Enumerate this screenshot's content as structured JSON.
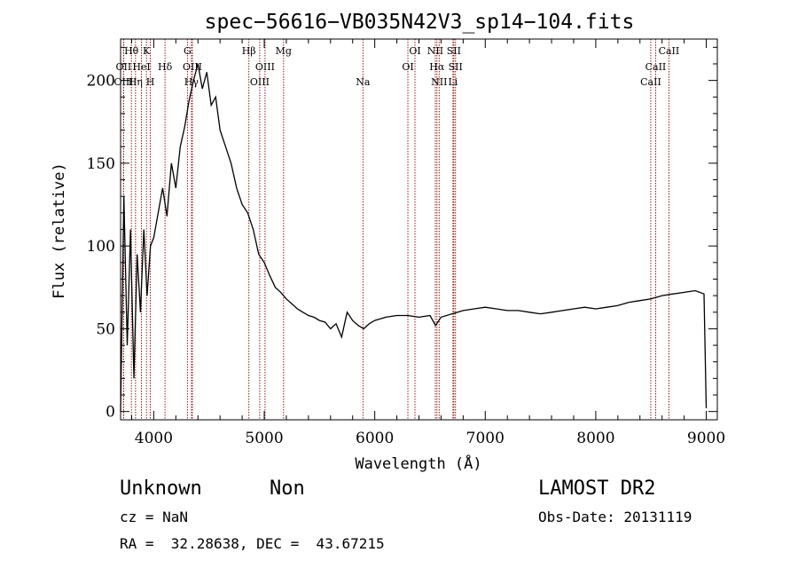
{
  "chart_data": {
    "type": "line",
    "title": "spec−56616−VB035N42V3_sp14−104.fits",
    "xlabel": "Wavelength (Å)",
    "ylabel": "Flux (relative)",
    "xlim": [
      3700,
      9100
    ],
    "ylim": [
      -5,
      225
    ],
    "x_ticks": [
      4000,
      5000,
      6000,
      7000,
      8000,
      9000
    ],
    "y_ticks": [
      0,
      50,
      100,
      150,
      200
    ],
    "grid": false,
    "series": [
      {
        "x": [
          3700,
          3730,
          3760,
          3790,
          3820,
          3850,
          3880,
          3910,
          3940,
          3970,
          4000,
          4040,
          4080,
          4120,
          4160,
          4200,
          4240,
          4280,
          4320,
          4360,
          4400,
          4440,
          4480,
          4520,
          4560,
          4600,
          4650,
          4700,
          4750,
          4800,
          4850,
          4900,
          4950,
          5000,
          5050,
          5100,
          5150,
          5200,
          5250,
          5300,
          5350,
          5400,
          5450,
          5500,
          5550,
          5600,
          5650,
          5700,
          5750,
          5800,
          5850,
          5900,
          5950,
          6000,
          6100,
          6200,
          6300,
          6400,
          6500,
          6550,
          6600,
          6700,
          6800,
          6900,
          7000,
          7100,
          7200,
          7300,
          7400,
          7500,
          7600,
          7700,
          7800,
          7900,
          8000,
          8100,
          8200,
          8300,
          8400,
          8500,
          8600,
          8700,
          8800,
          8900,
          8980,
          9000
        ],
        "y": [
          0,
          130,
          40,
          110,
          20,
          95,
          60,
          110,
          70,
          100,
          105,
          120,
          135,
          118,
          150,
          135,
          160,
          172,
          188,
          200,
          210,
          195,
          205,
          185,
          190,
          170,
          160,
          150,
          135,
          125,
          120,
          110,
          95,
          90,
          82,
          75,
          72,
          68,
          65,
          62,
          60,
          58,
          57,
          55,
          54,
          50,
          53,
          45,
          60,
          55,
          52,
          50,
          53,
          55,
          57,
          58,
          58,
          57,
          58,
          52,
          57,
          59,
          61,
          62,
          63,
          62,
          61,
          61,
          60,
          59,
          60,
          61,
          62,
          63,
          62,
          63,
          64,
          66,
          67,
          68,
          70,
          71,
          72,
          73,
          71,
          2
        ]
      }
    ],
    "line_markers": [
      {
        "name": "Hθ",
        "x": 3798,
        "row": 0
      },
      {
        "name": "OII",
        "x": 3727,
        "row": 1
      },
      {
        "name": "OIII",
        "x": 3728,
        "row": 2
      },
      {
        "name": "Hη",
        "x": 3835,
        "row": 2
      },
      {
        "name": "HeI",
        "x": 3889,
        "row": 1
      },
      {
        "name": "K",
        "x": 3934,
        "row": 0
      },
      {
        "name": "H",
        "x": 3969,
        "row": 2
      },
      {
        "name": "Hδ",
        "x": 4102,
        "row": 1
      },
      {
        "name": "G",
        "x": 4305,
        "row": 0
      },
      {
        "name": "OIII",
        "x": 4350,
        "row": 1
      },
      {
        "name": "Hγ",
        "x": 4341,
        "row": 2
      },
      {
        "name": "Hβ",
        "x": 4861,
        "row": 0
      },
      {
        "name": "OIII",
        "x": 4959,
        "row": 2
      },
      {
        "name": "OIII",
        "x": 5007,
        "row": 1
      },
      {
        "name": "Mg",
        "x": 5175,
        "row": 0
      },
      {
        "name": "Na",
        "x": 5893,
        "row": 2
      },
      {
        "name": "OI",
        "x": 6300,
        "row": 1
      },
      {
        "name": "OI",
        "x": 6364,
        "row": 0
      },
      {
        "name": "NII",
        "x": 6548,
        "row": 0
      },
      {
        "name": "Hα",
        "x": 6563,
        "row": 1
      },
      {
        "name": "NII",
        "x": 6583,
        "row": 2
      },
      {
        "name": "SII",
        "x": 6716,
        "row": 0
      },
      {
        "name": "SII",
        "x": 6731,
        "row": 1
      },
      {
        "name": "Li",
        "x": 6708,
        "row": 2
      },
      {
        "name": "CaII",
        "x": 8498,
        "row": 2
      },
      {
        "name": "CaII",
        "x": 8542,
        "row": 1
      },
      {
        "name": "CaII",
        "x": 8662,
        "row": 0
      }
    ],
    "marker_color": "#8b0000"
  },
  "info": {
    "classification": "Unknown",
    "subclass": "Non",
    "survey": "LAMOST DR2",
    "cz": "cz = NaN",
    "obs_date": "Obs-Date: 20131119",
    "coords": "RA =  32.28638, DEC =  43.67215"
  }
}
